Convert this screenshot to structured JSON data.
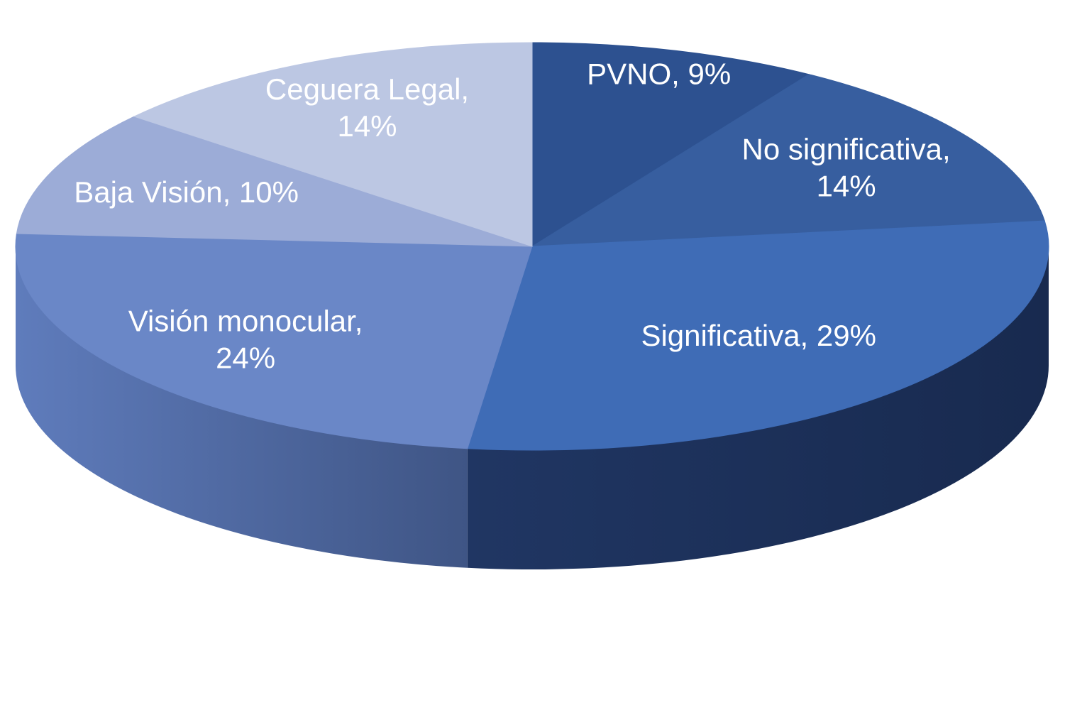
{
  "chart_data": {
    "type": "pie",
    "style": "3d",
    "title": "",
    "start": "12 o'clock",
    "direction": "clockwise",
    "unit": "%",
    "slices": [
      {
        "label": "PVNO",
        "value": 9,
        "color": "#2d5190",
        "label_color": "#ffffff",
        "label_lines": [
          "PVNO, 9%"
        ]
      },
      {
        "label": "No significativa",
        "value": 14,
        "color": "#375e9f",
        "label_color": "#ffffff",
        "label_lines": [
          "No significativa,",
          "14%"
        ]
      },
      {
        "label": "Significativa",
        "value": 29,
        "color": "#3f6cb6",
        "label_color": "#ffffff",
        "label_lines": [
          "Significativa, 29%"
        ]
      },
      {
        "label": "Visión monocular",
        "value": 24,
        "color": "#6a87c7",
        "label_color": "#ffffff",
        "label_lines": [
          "Visión monocular,",
          "24%"
        ]
      },
      {
        "label": "Baja Visión",
        "value": 10,
        "color": "#9cacd7",
        "label_color": "#ffffff",
        "label_lines": [
          "Baja Visión, 10%"
        ]
      },
      {
        "label": "Ceguera Legal",
        "value": 14,
        "color": "#bcc7e3",
        "label_color": "#ffffff",
        "label_lines": [
          "Ceguera Legal,",
          "14%"
        ]
      }
    ]
  }
}
